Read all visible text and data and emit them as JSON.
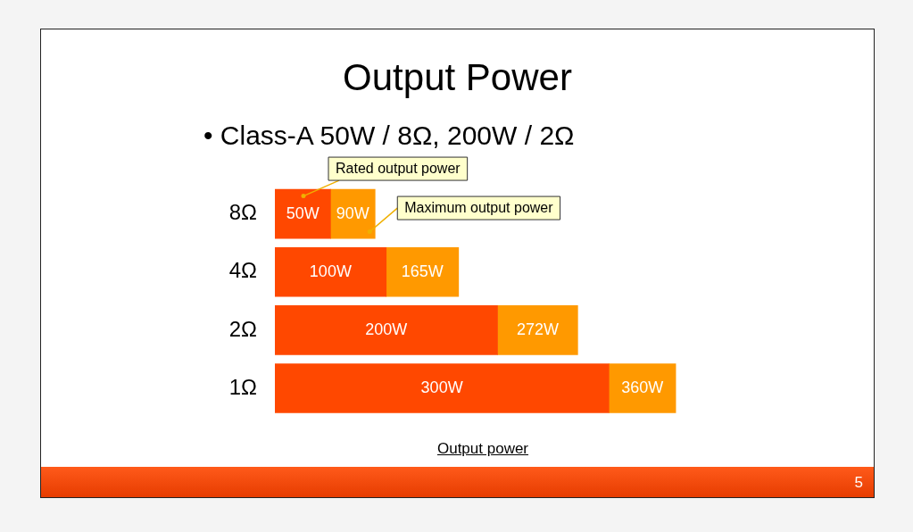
{
  "chart_data": {
    "type": "bar",
    "orientation": "horizontal",
    "stacked": true,
    "totals": [
      "90W",
      "165W",
      "272W",
      "360W"
    ],
    "title": "Output Power",
    "subtitle": "• Class-A 50W / 8Ω, 200W / 2Ω",
    "xlabel": "Output power",
    "categories": [
      "8Ω",
      "4Ω",
      "2Ω",
      "1Ω"
    ],
    "tick_labels": "y",
    "grid": false,
    "series": [
      {
        "name": "Rated output power",
        "color": "#ff4800",
        "values": [
          50,
          100,
          200,
          300
        ],
        "value_labels": [
          "50W",
          "100W",
          "200W",
          "300W"
        ]
      },
      {
        "name": "Maximum output power",
        "color": "#ff9900",
        "values": [
          40,
          65,
          72,
          60
        ]
      }
    ],
    "annotations": [
      "5"
    ]
  }
}
